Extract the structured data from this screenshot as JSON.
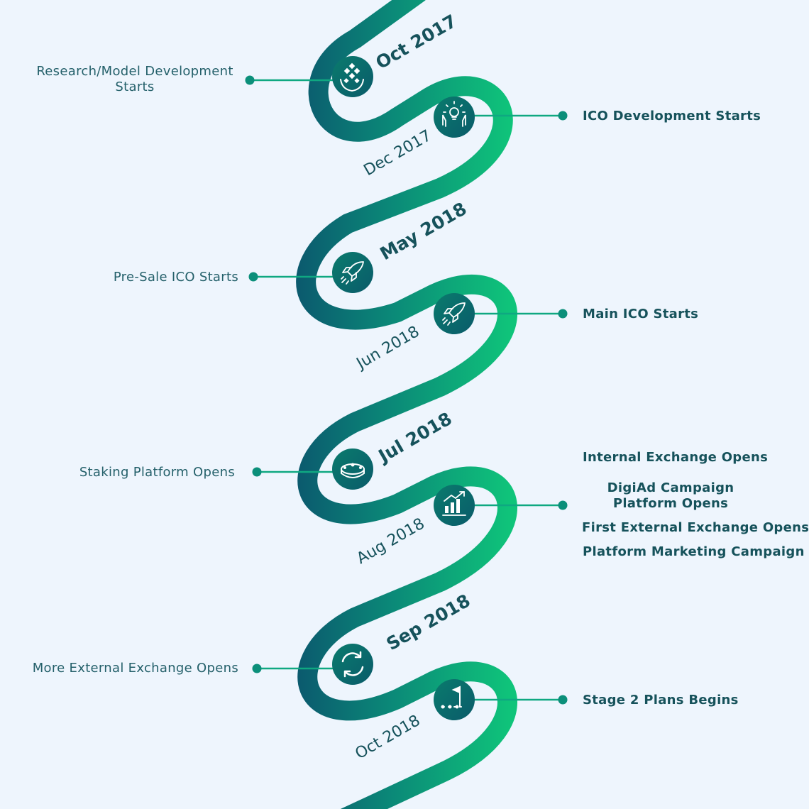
{
  "colors": {
    "background": "#eef5fd",
    "track_dark": "#0b5a6e",
    "track_green": "#0fc47a",
    "text": "#16525b"
  },
  "milestones": [
    {
      "date": "Oct 2017",
      "label": "Research/Model Development Starts",
      "side": "left",
      "icon": "plant-hands-icon"
    },
    {
      "date": "Dec 2017",
      "label": "ICO Development Starts",
      "side": "right",
      "icon": "idea-hands-icon"
    },
    {
      "date": "May 2018",
      "label": "Pre-Sale ICO  Starts",
      "side": "left",
      "icon": "rocket-icon"
    },
    {
      "date": "Jun 2018",
      "label": "Main ICO Starts",
      "side": "right",
      "icon": "rocket-icon"
    },
    {
      "date": "Jul 2018",
      "label": "Staking Platform Opens",
      "side": "left",
      "icon": "coin-stack-icon"
    },
    {
      "date": "Aug 2018",
      "labels": [
        "Internal Exchange Opens",
        "DigiAd Campaign Platform Opens",
        "First External Exchange Opens",
        "Platform Marketing Campaign"
      ],
      "side": "right",
      "icon": "growth-chart-icon"
    },
    {
      "date": "Sep 2018",
      "label": "More External Exchange Opens",
      "side": "left",
      "icon": "refresh-arrows-icon"
    },
    {
      "date": "Oct 2018",
      "label": "Stage 2 Plans Begins",
      "side": "right",
      "icon": "flag-goal-icon"
    }
  ]
}
